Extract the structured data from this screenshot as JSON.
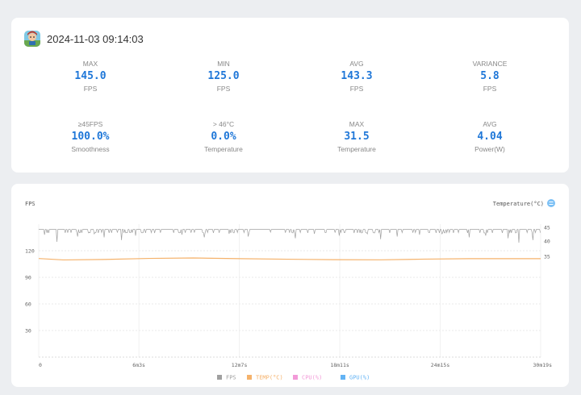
{
  "header": {
    "timestamp": "2024-11-03 09:14:03",
    "app_icon": "game-app-icon"
  },
  "stats": [
    {
      "id": "max-fps",
      "label": "MAX",
      "value": "145.0",
      "unit": "FPS"
    },
    {
      "id": "min-fps",
      "label": "MIN",
      "value": "125.0",
      "unit": "FPS"
    },
    {
      "id": "avg-fps",
      "label": "AVG",
      "value": "143.3",
      "unit": "FPS"
    },
    {
      "id": "variance",
      "label": "VARIANCE",
      "value": "5.8",
      "unit": "FPS"
    },
    {
      "id": "smoothness",
      "label": "≥45FPS",
      "value": "100.0%",
      "unit": "Smoothness"
    },
    {
      "id": "over-temp",
      "label": "> 46°C",
      "value": "0.0%",
      "unit": "Temperature"
    },
    {
      "id": "max-temp",
      "label": "MAX",
      "value": "31.5",
      "unit": "Temperature"
    },
    {
      "id": "avg-power",
      "label": "AVG",
      "value": "4.04",
      "unit": "Power(W)"
    }
  ],
  "chart_data": {
    "type": "line",
    "ylabel_left": "FPS",
    "ylabel_right": "Temperature(°C)",
    "y_left_ticks": [
      "120",
      "90",
      "60",
      "30"
    ],
    "y_left_tick_values": [
      120,
      90,
      60,
      30
    ],
    "y_left_range": [
      0,
      150
    ],
    "y_right_ticks": [
      "45",
      "40",
      "35"
    ],
    "y_right_tick_values": [
      45,
      40,
      35
    ],
    "x_ticks": [
      "0",
      "6m3s",
      "12m7s",
      "18m11s",
      "24m15s",
      "30m19s"
    ],
    "x_tick_seconds": [
      0,
      363,
      727,
      1091,
      1455,
      1819
    ],
    "x_range_seconds": [
      0,
      1819
    ],
    "grid": true,
    "legend_position": "bottom",
    "series": [
      {
        "name": "FPS",
        "color": "#a0a0a0",
        "baseline": 144,
        "dips": [
          [
            20,
            138
          ],
          [
            66,
            130
          ],
          [
            140,
            136
          ],
          [
            200,
            139
          ],
          [
            238,
            135
          ],
          [
            300,
            132
          ],
          [
            350,
            137
          ],
          [
            420,
            140
          ],
          [
            520,
            138
          ],
          [
            600,
            135
          ],
          [
            690,
            139
          ],
          [
            760,
            136
          ],
          [
            840,
            141
          ],
          [
            930,
            134
          ],
          [
            1000,
            139
          ],
          [
            1090,
            137
          ],
          [
            1190,
            139
          ],
          [
            1240,
            133
          ],
          [
            1300,
            136
          ],
          [
            1380,
            138
          ],
          [
            1460,
            139
          ],
          [
            1560,
            135
          ],
          [
            1620,
            137
          ],
          [
            1700,
            134
          ],
          [
            1740,
            129
          ],
          [
            1790,
            132
          ]
        ]
      },
      {
        "name": "TEMP(°C)",
        "color": "#f5b26b",
        "points": [
          [
            0,
            111.2
          ],
          [
            90,
            109.6
          ],
          [
            250,
            110.2
          ],
          [
            400,
            111.3
          ],
          [
            560,
            111.8
          ],
          [
            730,
            111.0
          ],
          [
            900,
            110.4
          ],
          [
            1070,
            109.9
          ],
          [
            1240,
            109.7
          ],
          [
            1400,
            110.5
          ],
          [
            1560,
            111.0
          ],
          [
            1819,
            111.0
          ]
        ]
      },
      {
        "name": "CPU(%)",
        "color": "#f29ad8",
        "points": []
      },
      {
        "name": "GPU(%)",
        "color": "#63b3f4",
        "points": []
      }
    ]
  }
}
